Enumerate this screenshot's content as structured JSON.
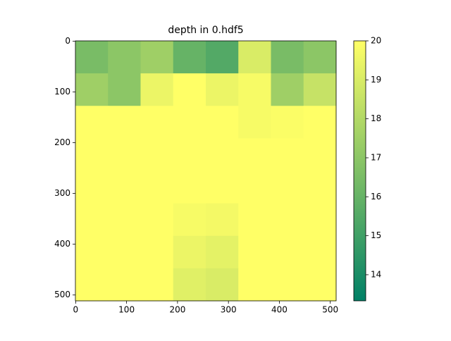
{
  "chart_data": {
    "type": "heatmap",
    "title": "depth in 0.hdf5",
    "colormap": "summer",
    "xlim": [
      -0.5,
      511.5
    ],
    "ylim": [
      511.5,
      -0.5
    ],
    "xticks": [
      0,
      100,
      200,
      300,
      400,
      500
    ],
    "yticks": [
      0,
      100,
      200,
      300,
      400,
      500
    ],
    "clim": [
      13.33,
      20
    ],
    "cticks": [
      14,
      15,
      16,
      17,
      18,
      19,
      20
    ],
    "z": [
      [
        16.5,
        17,
        17.5,
        16,
        15.5,
        19,
        16.5,
        17
      ],
      [
        17.5,
        17,
        19.5,
        20,
        19.5,
        19.8,
        17.5,
        18.5
      ],
      [
        20,
        20,
        20,
        20,
        20,
        19.8,
        19.9,
        20
      ],
      [
        20,
        20,
        20,
        20,
        20,
        20,
        20,
        20
      ],
      [
        20,
        20,
        20,
        20,
        20,
        20,
        20,
        20
      ],
      [
        20,
        20,
        20,
        19.8,
        19.7,
        20,
        20,
        20
      ],
      [
        20,
        20,
        20,
        19.5,
        19.3,
        20,
        20,
        20
      ],
      [
        20,
        20,
        20,
        19.2,
        19,
        20,
        20,
        20
      ]
    ]
  }
}
